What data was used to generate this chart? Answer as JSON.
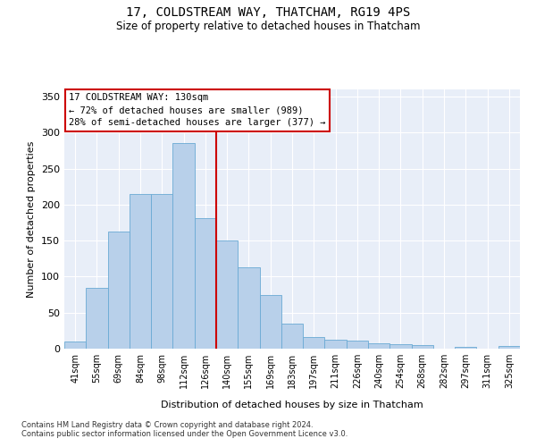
{
  "title": "17, COLDSTREAM WAY, THATCHAM, RG19 4PS",
  "subtitle": "Size of property relative to detached houses in Thatcham",
  "xlabel": "Distribution of detached houses by size in Thatcham",
  "ylabel": "Number of detached properties",
  "bar_labels": [
    "41sqm",
    "55sqm",
    "69sqm",
    "84sqm",
    "98sqm",
    "112sqm",
    "126sqm",
    "140sqm",
    "155sqm",
    "169sqm",
    "183sqm",
    "197sqm",
    "211sqm",
    "226sqm",
    "240sqm",
    "254sqm",
    "268sqm",
    "282sqm",
    "297sqm",
    "311sqm",
    "325sqm"
  ],
  "bar_values": [
    10,
    85,
    163,
    215,
    215,
    285,
    181,
    150,
    113,
    75,
    35,
    16,
    12,
    11,
    8,
    6,
    5,
    0,
    2,
    0,
    4
  ],
  "bar_color": "#b8d0ea",
  "bar_edgecolor": "#6aaad4",
  "background_color": "#e8eef8",
  "grid_color": "#ffffff",
  "vline_color": "#cc0000",
  "annotation_title": "17 COLDSTREAM WAY: 130sqm",
  "annotation_line1": "← 72% of detached houses are smaller (989)",
  "annotation_line2": "28% of semi-detached houses are larger (377) →",
  "annotation_box_color": "#cc0000",
  "ylim": [
    0,
    360
  ],
  "yticks": [
    0,
    50,
    100,
    150,
    200,
    250,
    300,
    350
  ],
  "footer1": "Contains HM Land Registry data © Crown copyright and database right 2024.",
  "footer2": "Contains public sector information licensed under the Open Government Licence v3.0."
}
